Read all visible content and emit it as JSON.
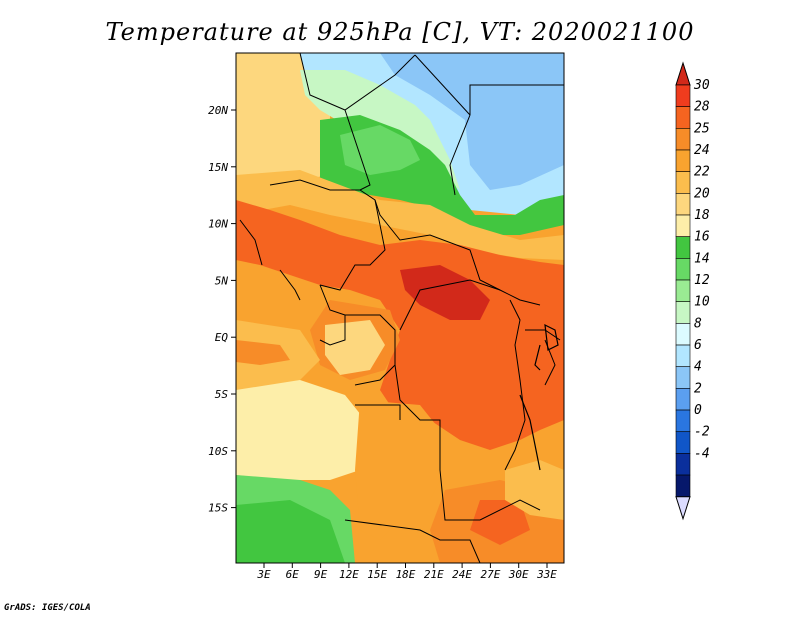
{
  "title": "Temperature at 925hPa [C], VT: 2020021100",
  "credit": "GrADS: IGES/COLA",
  "map": {
    "lon_labels": [
      "3E",
      "6E",
      "9E",
      "12E",
      "15E",
      "18E",
      "21E",
      "24E",
      "27E",
      "30E",
      "33E"
    ],
    "lat_labels": [
      "20N",
      "15N",
      "10N",
      "5N",
      "EQ",
      "5S",
      "10S",
      "15S"
    ]
  },
  "colorbar": {
    "labels": [
      "30",
      "28",
      "25",
      "24",
      "22",
      "20",
      "18",
      "16",
      "14",
      "12",
      "10",
      "8",
      "6",
      "4",
      "2",
      "0",
      "-2",
      "-4"
    ],
    "colors": [
      "#f03c1e",
      "#f56420",
      "#f78c28",
      "#f9a32f",
      "#fbbd4d",
      "#fdd77e",
      "#fdeea9",
      "#42c640",
      "#67d965",
      "#9aeb93",
      "#c7f7c4",
      "#dcfbff",
      "#b2e6ff",
      "#8bc6f7",
      "#5b9ff0",
      "#2a76e0",
      "#1056c8",
      "#0a2f9c",
      "#06186b"
    ],
    "top_color": "#d2291a",
    "bottom_color": "#dcdcff"
  }
}
